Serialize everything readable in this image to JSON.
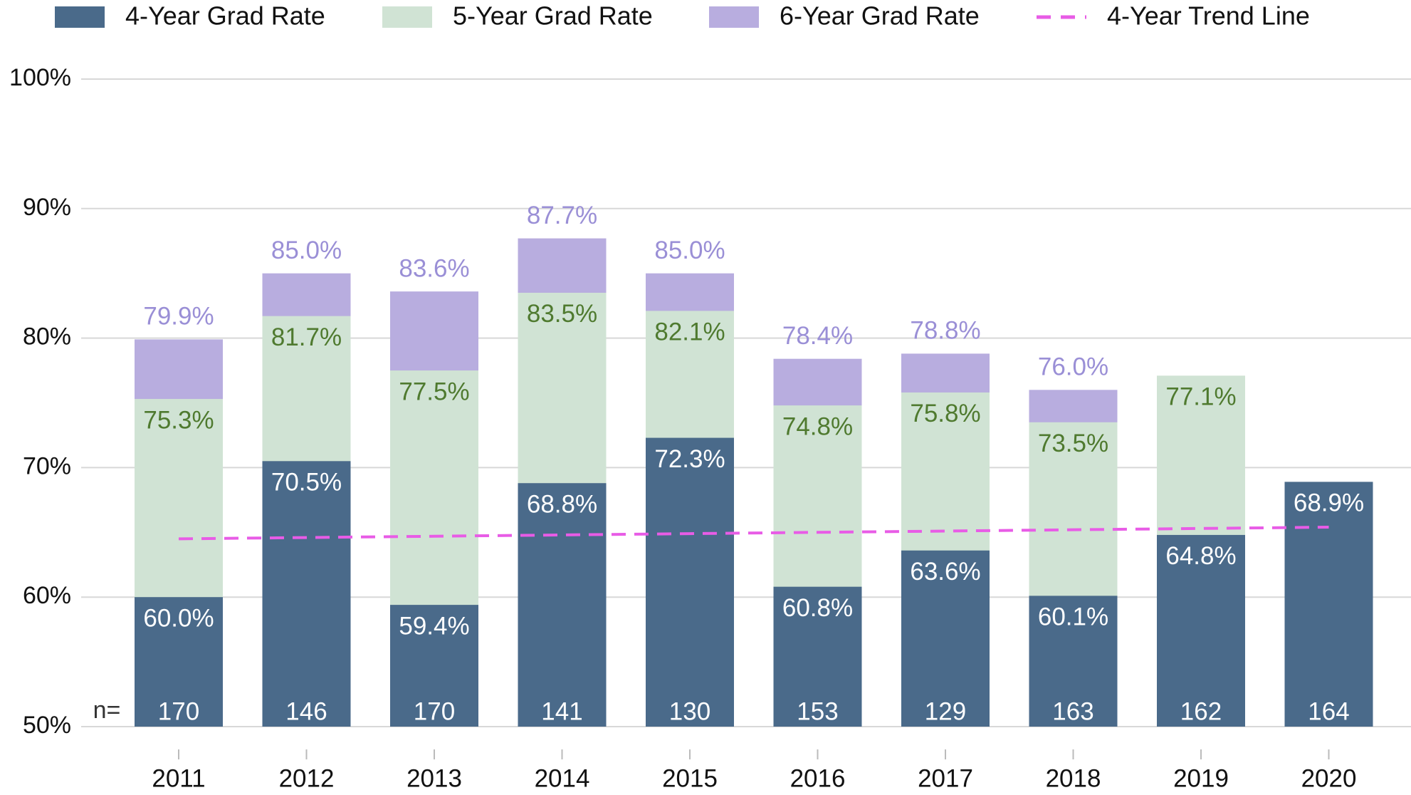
{
  "chart_data": {
    "type": "bar",
    "categories": [
      "2011",
      "2012",
      "2013",
      "2014",
      "2015",
      "2016",
      "2017",
      "2018",
      "2019",
      "2020"
    ],
    "series": [
      {
        "name": "4-Year Grad Rate",
        "color": "#4a6a8a",
        "label_color": "#ffffff",
        "values": [
          60.0,
          70.5,
          59.4,
          68.8,
          72.3,
          60.8,
          63.6,
          60.1,
          64.8,
          68.9
        ],
        "value_labels": [
          "60.0%",
          "70.5%",
          "59.4%",
          "68.8%",
          "72.3%",
          "60.8%",
          "63.6%",
          "60.1%",
          "64.8%",
          "68.9%"
        ]
      },
      {
        "name": "5-Year Grad Rate",
        "color": "#d0e3d4",
        "label_color": "#4f7a2f",
        "values": [
          75.3,
          81.7,
          77.5,
          83.5,
          82.1,
          74.8,
          75.8,
          73.5,
          77.1,
          null
        ],
        "value_labels": [
          "75.3%",
          "81.7%",
          "77.5%",
          "83.5%",
          "82.1%",
          "74.8%",
          "75.8%",
          "73.5%",
          "77.1%",
          null
        ]
      },
      {
        "name": "6-Year Grad Rate",
        "color": "#b8addf",
        "label_color": "#9a8fd6",
        "values": [
          79.9,
          85.0,
          83.6,
          87.7,
          85.0,
          78.4,
          78.8,
          76.0,
          null,
          null
        ],
        "value_labels": [
          "79.9%",
          "85.0%",
          "83.6%",
          "87.7%",
          "85.0%",
          "78.4%",
          "78.8%",
          "76.0%",
          null,
          null
        ]
      }
    ],
    "trend": {
      "name": "4-Year Trend Line",
      "color": "#e85ce6",
      "values": [
        64.5,
        64.6,
        64.7,
        64.8,
        64.9,
        65.0,
        65.1,
        65.2,
        65.3,
        65.4
      ]
    },
    "n_label": "n=",
    "n": [
      170,
      146,
      170,
      141,
      130,
      153,
      129,
      163,
      162,
      164
    ],
    "ylim": [
      50,
      100
    ],
    "yticks": [
      {
        "value": 50,
        "label": "50%"
      },
      {
        "value": 60,
        "label": "60%"
      },
      {
        "value": 70,
        "label": "70%"
      },
      {
        "value": 80,
        "label": "80%"
      },
      {
        "value": 90,
        "label": "90%"
      },
      {
        "value": 100,
        "label": "100%"
      }
    ],
    "grid": true
  }
}
